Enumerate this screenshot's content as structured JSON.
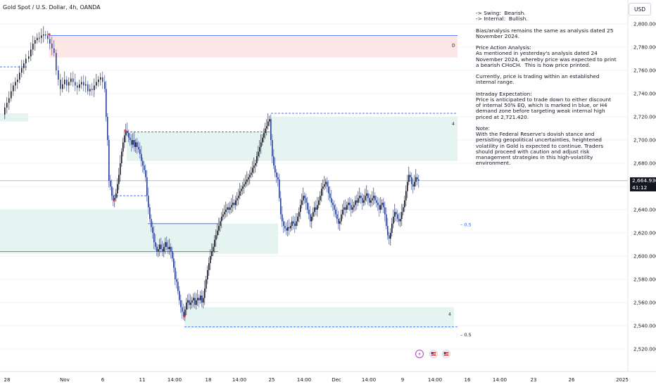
{
  "header": {
    "title": "Gold Spot / U.S. Dollar, 4h, OANDA",
    "currency": "USD"
  },
  "analysis_text": "-> Swing:  Bearish.\n-> Internal:  Bullish.\n\nBias/analysis remains the same as analysis dated 25 November 2024.\n\nPrice Action Analysis:\nAs mentioned in yesterday's analysis dated 24 November 2024, whereby price was expected to print a bearish CHoCH.  This is how price printed.\n\nCurrently, price is trading within an established internal range.\n\nIntraday Expectation:\nPrice is anticipated to trade down to either discount of internal 50% EQ, which is marked in blue, or H4 demand zone before targeting weak internal high priced at 2,721.420.\n\nNote:\nWith the Federal Reserve's dovish stance and persisting geopolitical uncertainties, heightened volatility in Gold is expected to continue. Traders should proceed with caution and adjust risk management strategies in this high-volatility environment.",
  "price_tag": {
    "price": "2,664.930",
    "countdown": "41:12"
  },
  "colors": {
    "up": "#131722",
    "down": "#2a3f8f",
    "zone_red": "#fce6e6",
    "zone_teal": "#e5f4f1",
    "line_blue": "#2962ff"
  },
  "chart_data": {
    "type": "candlestick",
    "instrument": "Gold Spot / U.S. Dollar",
    "timeframe": "4h",
    "ylim": [
      2510,
      2815
    ],
    "y_ticks": [
      "2,520.000",
      "2,540.000",
      "2,560.000",
      "2,580.000",
      "2,600.000",
      "2,620.000",
      "2,640.000",
      "2,660.000",
      "2,680.000",
      "2,700.000",
      "2,720.000",
      "2,740.000",
      "2,760.000",
      "2,780.000",
      "2,800.000"
    ],
    "x_ticks": [
      "28",
      "Nov",
      "6",
      "11",
      "14:00",
      "18",
      "14:00",
      "25",
      "14:00",
      "Dec",
      "14:00",
      "9",
      "14:00",
      "16",
      "14:00",
      "23",
      "26",
      "2025"
    ],
    "last_price": 2664.93,
    "close_path": [
      [
        0,
        2722
      ],
      [
        6,
        2728
      ],
      [
        9,
        2732
      ],
      [
        12,
        2736
      ],
      [
        15,
        2742
      ],
      [
        18,
        2747
      ],
      [
        21,
        2750
      ],
      [
        24,
        2752
      ],
      [
        27,
        2758
      ],
      [
        30,
        2762
      ],
      [
        33,
        2766
      ],
      [
        36,
        2770
      ],
      [
        40,
        2772
      ],
      [
        43,
        2778
      ],
      [
        46,
        2783
      ],
      [
        49,
        2786
      ],
      [
        52,
        2788
      ],
      [
        55,
        2788
      ],
      [
        58,
        2790
      ],
      [
        61,
        2791
      ],
      [
        64,
        2790
      ],
      [
        67,
        2787
      ],
      [
        70,
        2783
      ],
      [
        73,
        2779
      ],
      [
        76,
        2775
      ],
      [
        79,
        2760
      ],
      [
        82,
        2752
      ],
      [
        85,
        2744
      ],
      [
        88,
        2748
      ],
      [
        91,
        2752
      ],
      [
        94,
        2747
      ],
      [
        97,
        2750
      ],
      [
        100,
        2753
      ],
      [
        103,
        2750
      ],
      [
        106,
        2747
      ],
      [
        109,
        2745
      ],
      [
        112,
        2748
      ],
      [
        115,
        2750
      ],
      [
        118,
        2747
      ],
      [
        121,
        2748
      ],
      [
        124,
        2742
      ],
      [
        127,
        2744
      ],
      [
        130,
        2743
      ],
      [
        133,
        2747
      ],
      [
        136,
        2750
      ],
      [
        139,
        2752
      ],
      [
        142,
        2754
      ],
      [
        145,
        2750
      ],
      [
        148,
        2744
      ],
      [
        150,
        2720
      ],
      [
        152,
        2700
      ],
      [
        154,
        2665
      ],
      [
        156,
        2660
      ],
      [
        158,
        2652
      ],
      [
        160,
        2648
      ],
      [
        162,
        2650
      ],
      [
        164,
        2654
      ],
      [
        166,
        2662
      ],
      [
        168,
        2670
      ],
      [
        170,
        2680
      ],
      [
        172,
        2690
      ],
      [
        174,
        2698
      ],
      [
        176,
        2704
      ],
      [
        178,
        2708
      ],
      [
        180,
        2706
      ],
      [
        182,
        2702
      ],
      [
        184,
        2700
      ],
      [
        186,
        2696
      ],
      [
        188,
        2700
      ],
      [
        190,
        2694
      ],
      [
        192,
        2698
      ],
      [
        194,
        2694
      ],
      [
        196,
        2692
      ],
      [
        198,
        2688
      ],
      [
        200,
        2682
      ],
      [
        202,
        2678
      ],
      [
        204,
        2674
      ],
      [
        206,
        2668
      ],
      [
        208,
        2652
      ],
      [
        210,
        2642
      ],
      [
        212,
        2632
      ],
      [
        214,
        2625
      ],
      [
        216,
        2620
      ],
      [
        218,
        2612
      ],
      [
        220,
        2608
      ],
      [
        222,
        2604
      ],
      [
        224,
        2606
      ],
      [
        226,
        2610
      ],
      [
        228,
        2606
      ],
      [
        230,
        2604
      ],
      [
        232,
        2608
      ],
      [
        234,
        2612
      ],
      [
        236,
        2608
      ],
      [
        238,
        2606
      ],
      [
        240,
        2608
      ],
      [
        242,
        2604
      ],
      [
        244,
        2598
      ],
      [
        246,
        2590
      ],
      [
        248,
        2580
      ],
      [
        250,
        2578
      ],
      [
        252,
        2570
      ],
      [
        254,
        2562
      ],
      [
        256,
        2556
      ],
      [
        258,
        2552
      ],
      [
        260,
        2548
      ],
      [
        262,
        2554
      ],
      [
        264,
        2560
      ],
      [
        266,
        2562
      ],
      [
        268,
        2558
      ],
      [
        270,
        2560
      ],
      [
        272,
        2562
      ],
      [
        274,
        2564
      ],
      [
        276,
        2558
      ],
      [
        278,
        2562
      ],
      [
        280,
        2564
      ],
      [
        282,
        2562
      ],
      [
        284,
        2566
      ],
      [
        286,
        2560
      ],
      [
        288,
        2564
      ],
      [
        290,
        2572
      ],
      [
        292,
        2580
      ],
      [
        294,
        2588
      ],
      [
        296,
        2594
      ],
      [
        298,
        2600
      ],
      [
        300,
        2604
      ],
      [
        302,
        2608
      ],
      [
        304,
        2614
      ],
      [
        306,
        2618
      ],
      [
        308,
        2622
      ],
      [
        310,
        2626
      ],
      [
        312,
        2630
      ],
      [
        314,
        2634
      ],
      [
        316,
        2636
      ],
      [
        318,
        2638
      ],
      [
        320,
        2640
      ],
      [
        322,
        2642
      ],
      [
        324,
        2640
      ],
      [
        326,
        2642
      ],
      [
        328,
        2644
      ],
      [
        330,
        2646
      ],
      [
        332,
        2644
      ],
      [
        334,
        2648
      ],
      [
        336,
        2650
      ],
      [
        338,
        2652
      ],
      [
        340,
        2656
      ],
      [
        342,
        2658
      ],
      [
        344,
        2660
      ],
      [
        346,
        2662
      ],
      [
        348,
        2664
      ],
      [
        350,
        2666
      ],
      [
        352,
        2668
      ],
      [
        354,
        2670
      ],
      [
        356,
        2672
      ],
      [
        358,
        2676
      ],
      [
        360,
        2678
      ],
      [
        362,
        2680
      ],
      [
        364,
        2686
      ],
      [
        366,
        2690
      ],
      [
        368,
        2694
      ],
      [
        370,
        2698
      ],
      [
        372,
        2702
      ],
      [
        374,
        2706
      ],
      [
        376,
        2710
      ],
      [
        378,
        2712
      ],
      [
        380,
        2716
      ],
      [
        382,
        2718
      ],
      [
        384,
        2700
      ],
      [
        386,
        2686
      ],
      [
        388,
        2678
      ],
      [
        390,
        2672
      ],
      [
        392,
        2668
      ],
      [
        394,
        2666
      ],
      [
        396,
        2650
      ],
      [
        398,
        2636
      ],
      [
        400,
        2630
      ],
      [
        402,
        2626
      ],
      [
        404,
        2624
      ],
      [
        406,
        2622
      ],
      [
        408,
        2625
      ],
      [
        410,
        2624
      ],
      [
        412,
        2626
      ],
      [
        414,
        2630
      ],
      [
        416,
        2628
      ],
      [
        418,
        2626
      ],
      [
        420,
        2630
      ],
      [
        422,
        2634
      ],
      [
        424,
        2638
      ],
      [
        426,
        2644
      ],
      [
        428,
        2648
      ],
      [
        430,
        2652
      ],
      [
        432,
        2650
      ],
      [
        434,
        2646
      ],
      [
        436,
        2640
      ],
      [
        438,
        2636
      ],
      [
        440,
        2630
      ],
      [
        442,
        2634
      ],
      [
        444,
        2638
      ],
      [
        446,
        2642
      ],
      [
        448,
        2640
      ],
      [
        450,
        2644
      ],
      [
        452,
        2648
      ],
      [
        454,
        2652
      ],
      [
        456,
        2658
      ],
      [
        458,
        2660
      ],
      [
        460,
        2662
      ],
      [
        462,
        2664
      ],
      [
        464,
        2660
      ],
      [
        466,
        2654
      ],
      [
        468,
        2650
      ],
      [
        470,
        2646
      ],
      [
        472,
        2644
      ],
      [
        474,
        2640
      ],
      [
        476,
        2636
      ],
      [
        478,
        2632
      ],
      [
        480,
        2628
      ],
      [
        482,
        2630
      ],
      [
        484,
        2636
      ],
      [
        486,
        2640
      ],
      [
        488,
        2642
      ],
      [
        490,
        2640
      ],
      [
        492,
        2644
      ],
      [
        494,
        2646
      ],
      [
        496,
        2644
      ],
      [
        498,
        2640
      ],
      [
        500,
        2642
      ],
      [
        502,
        2644
      ],
      [
        504,
        2648
      ],
      [
        506,
        2646
      ],
      [
        508,
        2650
      ],
      [
        510,
        2652
      ],
      [
        512,
        2650
      ],
      [
        514,
        2646
      ],
      [
        516,
        2648
      ],
      [
        518,
        2652
      ],
      [
        520,
        2654
      ],
      [
        522,
        2650
      ],
      [
        524,
        2646
      ],
      [
        526,
        2648
      ],
      [
        528,
        2650
      ],
      [
        530,
        2652
      ],
      [
        532,
        2648
      ],
      [
        534,
        2646
      ],
      [
        536,
        2644
      ],
      [
        538,
        2640
      ],
      [
        540,
        2644
      ],
      [
        542,
        2646
      ],
      [
        544,
        2642
      ],
      [
        546,
        2636
      ],
      [
        548,
        2626
      ],
      [
        550,
        2618
      ],
      [
        552,
        2615
      ],
      [
        554,
        2620
      ],
      [
        556,
        2628
      ],
      [
        558,
        2634
      ],
      [
        560,
        2638
      ],
      [
        562,
        2636
      ],
      [
        564,
        2632
      ],
      [
        566,
        2630
      ],
      [
        568,
        2632
      ],
      [
        570,
        2638
      ],
      [
        572,
        2642
      ],
      [
        574,
        2648
      ],
      [
        576,
        2656
      ],
      [
        578,
        2664
      ],
      [
        580,
        2670
      ],
      [
        582,
        2668
      ],
      [
        584,
        2662
      ],
      [
        586,
        2660
      ],
      [
        588,
        2664
      ],
      [
        590,
        2668
      ],
      [
        592,
        2666
      ],
      [
        594,
        2664.93
      ]
    ],
    "zones": [
      {
        "kind": "supply",
        "from": 2790,
        "to": 2771,
        "label": "D"
      },
      {
        "kind": "demand",
        "from": 2723,
        "to": 2716
      },
      {
        "kind": "demand",
        "from": 2707,
        "to": 2682
      },
      {
        "kind": "demand",
        "from": 2720,
        "to": 2703,
        "label": "4"
      },
      {
        "kind": "demand",
        "from": 2640,
        "to": 2617
      },
      {
        "kind": "demand",
        "from": 2628,
        "to": 2602
      },
      {
        "kind": "demand",
        "from": 2556,
        "to": 2538,
        "label": "4"
      }
    ],
    "fifty_labels": [
      {
        "price": 2627,
        "text": "0.5"
      },
      {
        "price": 2532,
        "text": "0.5"
      }
    ],
    "events": [
      {
        "kind": "lightning-icon"
      },
      {
        "kind": "us-flag-icon"
      },
      {
        "kind": "us-flag-icon"
      }
    ]
  }
}
